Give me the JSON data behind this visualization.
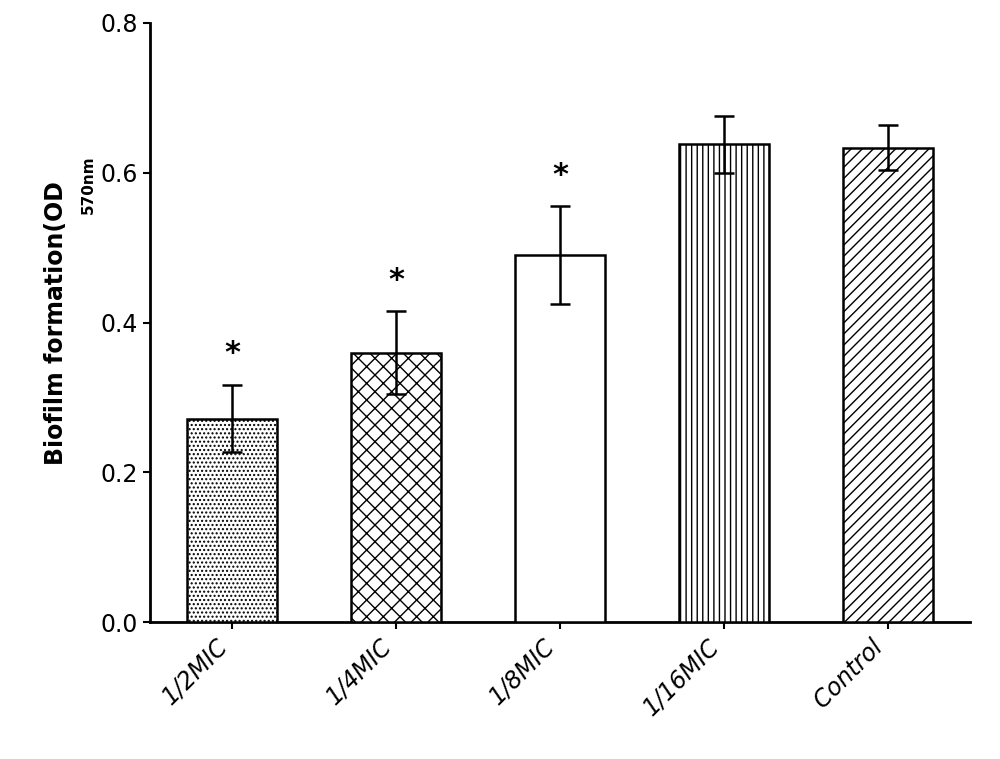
{
  "categories": [
    "1/2MIC",
    "1/4MIC",
    "1/8MIC",
    "1/16MIC",
    "Control"
  ],
  "values": [
    0.272,
    0.36,
    0.49,
    0.638,
    0.633
  ],
  "errors": [
    0.045,
    0.055,
    0.065,
    0.038,
    0.03
  ],
  "hatch_patterns": [
    "....",
    "xx",
    "===",
    "|||",
    "///"
  ],
  "star_indices": [
    0,
    1,
    2
  ],
  "ylabel_main": "Biofilm formation(OD",
  "ylabel_sub": "570nm",
  "ylim": [
    0.0,
    0.8
  ],
  "yticks": [
    0.0,
    0.2,
    0.4,
    0.6,
    0.8
  ],
  "bar_color": "white",
  "bar_edgecolor": "black",
  "background_color": "white",
  "bar_width": 0.55,
  "figsize": [
    10.0,
    7.59
  ],
  "dpi": 100
}
